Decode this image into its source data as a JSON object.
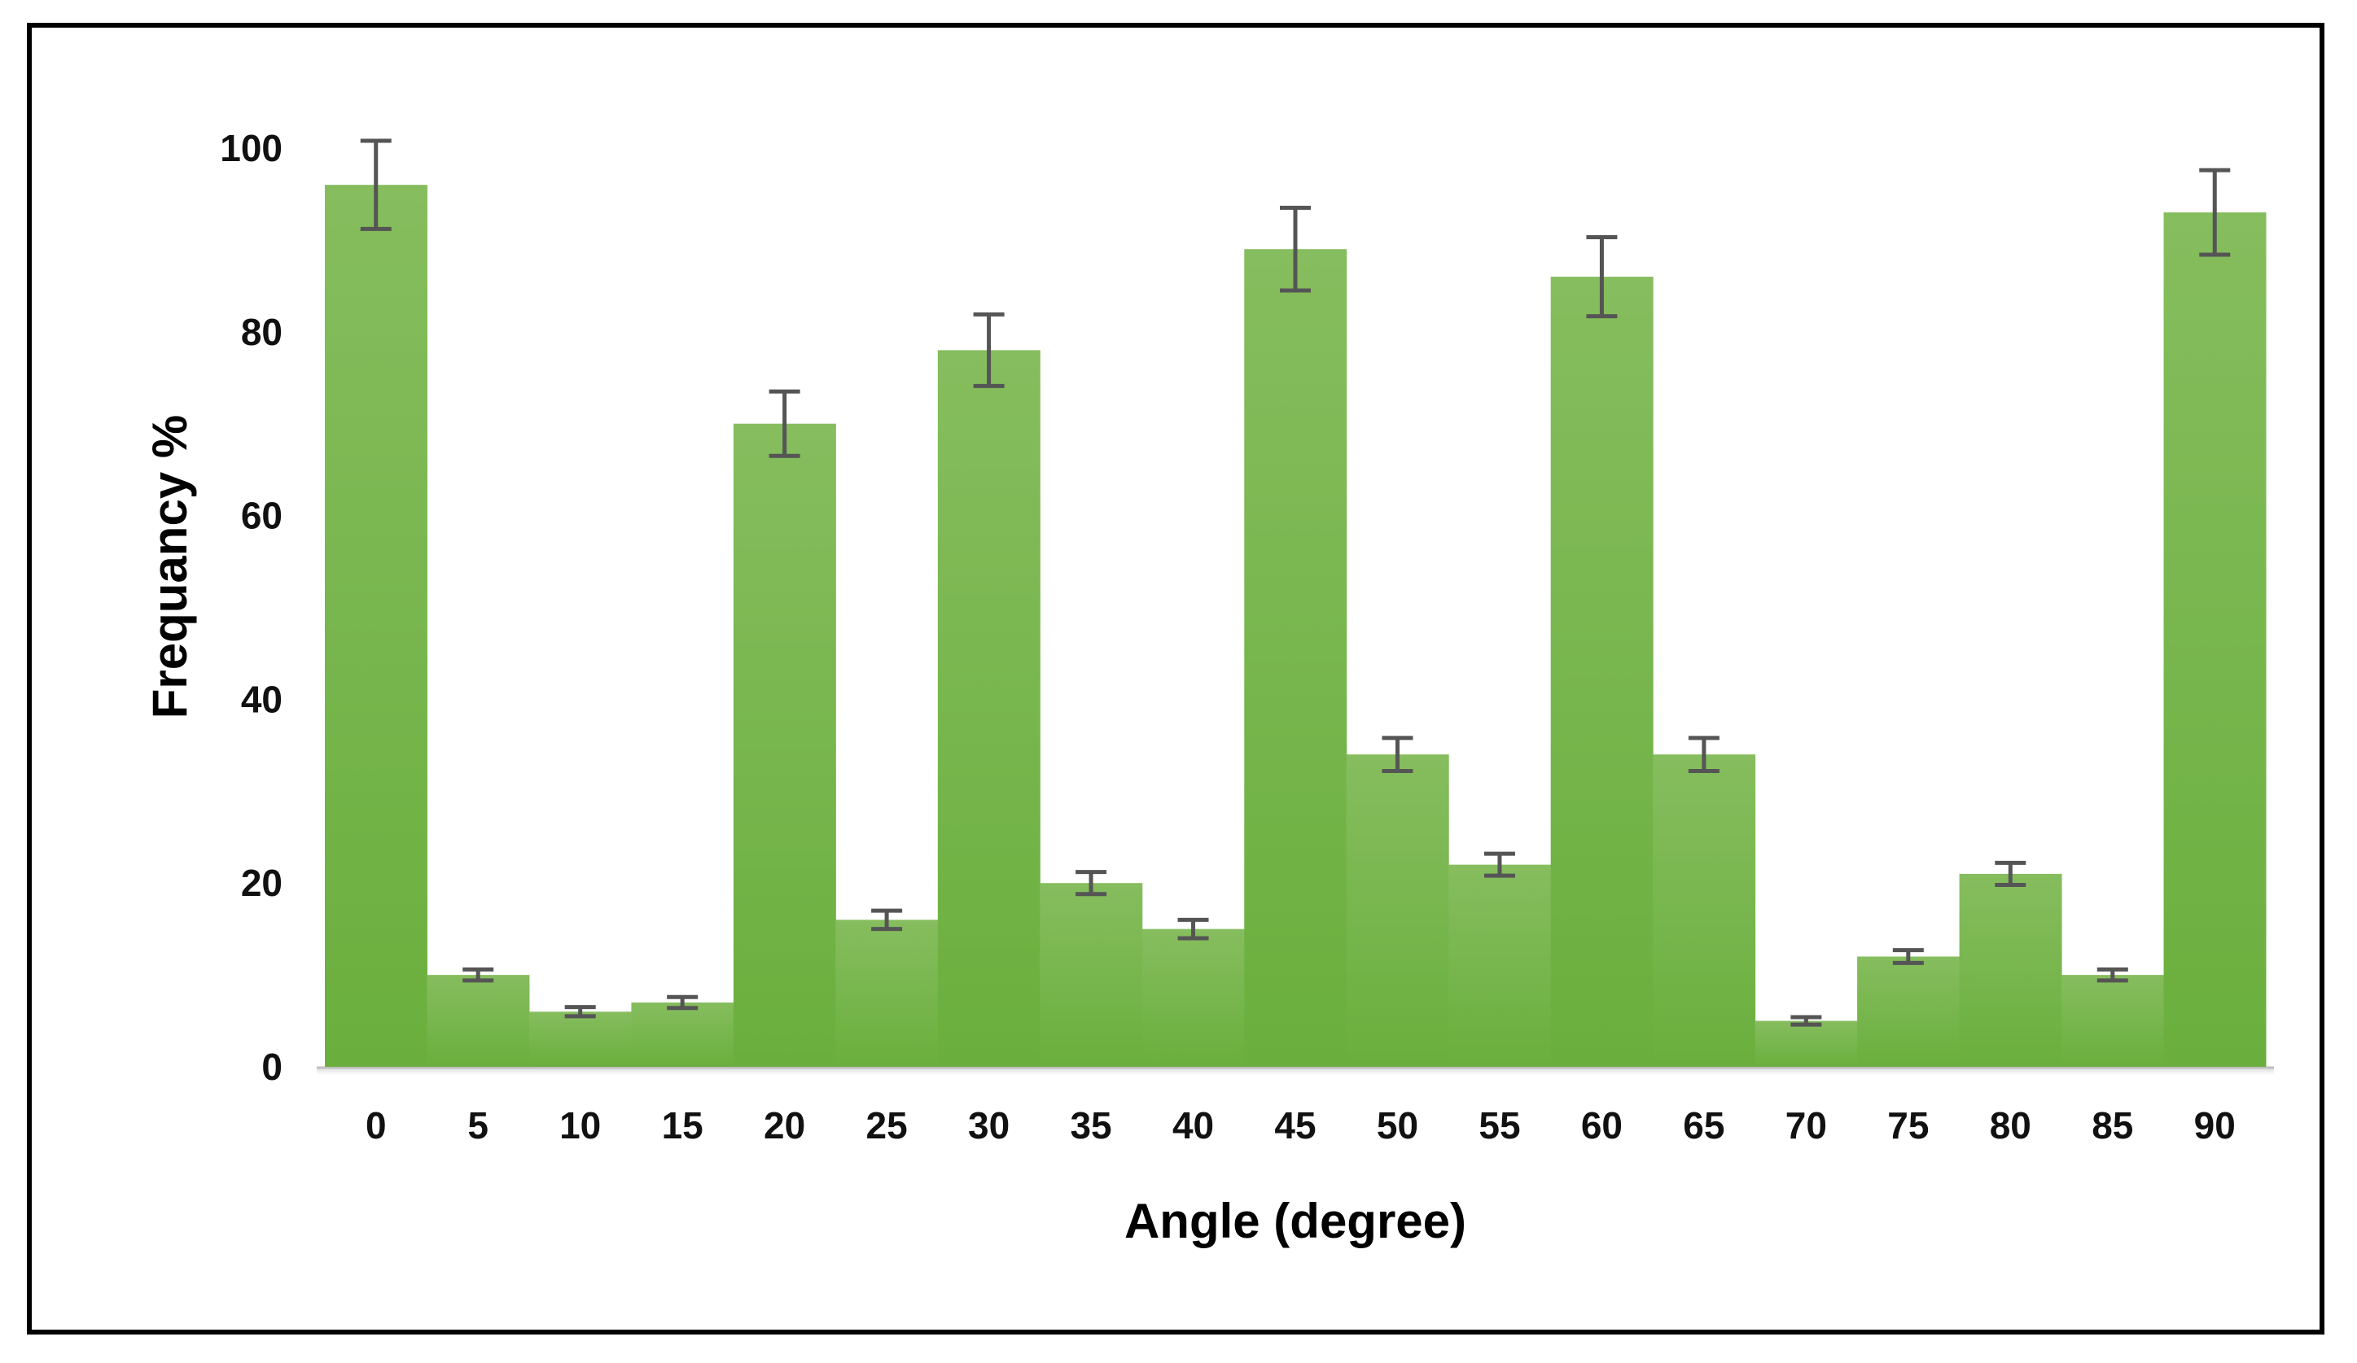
{
  "chart_data": {
    "type": "bar",
    "title": "",
    "xlabel": "Angle (degree)",
    "ylabel": "Frequancy %",
    "categories": [
      "0",
      "5",
      "10",
      "15",
      "20",
      "25",
      "30",
      "35",
      "40",
      "45",
      "50",
      "55",
      "60",
      "65",
      "70",
      "75",
      "80",
      "85",
      "90"
    ],
    "values": [
      96,
      10,
      6,
      7,
      70,
      16,
      78,
      20,
      15,
      89,
      34,
      22,
      86,
      34,
      5,
      12,
      21,
      10,
      93
    ],
    "error": [
      4.8,
      0.6,
      0.5,
      0.6,
      3.5,
      1,
      3.9,
      1.2,
      1,
      4.5,
      1.8,
      1.2,
      4.3,
      1.8,
      0.4,
      0.7,
      1.2,
      0.6,
      4.6
    ],
    "ylim": [
      0,
      100
    ],
    "yticks": [
      0,
      20,
      40,
      60,
      80,
      100
    ],
    "grid": false,
    "bar_color": "#6aaf3d",
    "bar_color_top": "#86bd5e",
    "error_bar_color": "#555555"
  }
}
